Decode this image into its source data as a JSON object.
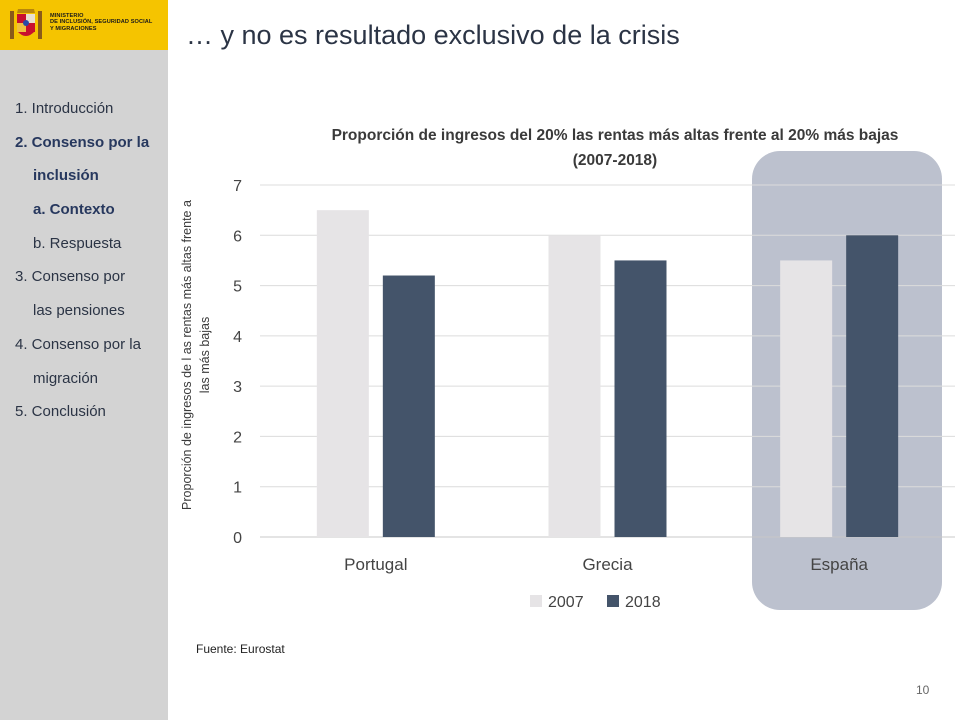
{
  "header": {
    "ministry_lines": [
      "MINISTERIO",
      "DE INCLUSIÓN, SEGURIDAD SOCIAL",
      "Y MIGRACIONES"
    ],
    "title": "… y no es resultado exclusivo de la crisis"
  },
  "sidebar": {
    "items": [
      {
        "label": "1. Introducción",
        "level": 1,
        "active": false
      },
      {
        "label": "2. Consenso por la",
        "level": 1,
        "active": true
      },
      {
        "label": "inclusión",
        "level": 1,
        "active": true,
        "continuation": true
      },
      {
        "label": "a. Contexto",
        "level": 2,
        "active": true
      },
      {
        "label": "b. Respuesta",
        "level": 2,
        "active": false
      },
      {
        "label": "3. Consenso por",
        "level": 1,
        "active": false
      },
      {
        "label": "las pensiones",
        "level": 1,
        "active": false,
        "continuation": true
      },
      {
        "label": "4. Consenso por la",
        "level": 1,
        "active": false
      },
      {
        "label": "migración",
        "level": 1,
        "active": false,
        "continuation": true
      },
      {
        "label": "5. Conclusión",
        "level": 1,
        "active": false
      }
    ]
  },
  "chart_data": {
    "type": "bar",
    "title_lines": [
      "Proporción  de ingresos del 20% las rentas más altas frente al 20% más bajas",
      "(2007-2018)"
    ],
    "ylabel_lines": [
      "Proporción  de ingresos de l      as rentas más altas frente a",
      "las más bajas"
    ],
    "categories": [
      "Portugal",
      "Grecia",
      "España"
    ],
    "series": [
      {
        "name": "2007",
        "values": [
          6.5,
          6.0,
          5.5
        ],
        "color": "#e6e4e6"
      },
      {
        "name": "2018",
        "values": [
          5.2,
          5.5,
          6.0
        ],
        "color": "#44546a"
      }
    ],
    "ylim": [
      0,
      7
    ],
    "yticks": [
      "0",
      "1",
      "2",
      "3",
      "4",
      "5",
      "6",
      "7"
    ],
    "grid": true,
    "legend": "bottom",
    "highlight_category": "España",
    "highlight_color": "#bcc1ce"
  },
  "footer": {
    "source": "Fuente: Eurostat",
    "page_number": "10"
  }
}
